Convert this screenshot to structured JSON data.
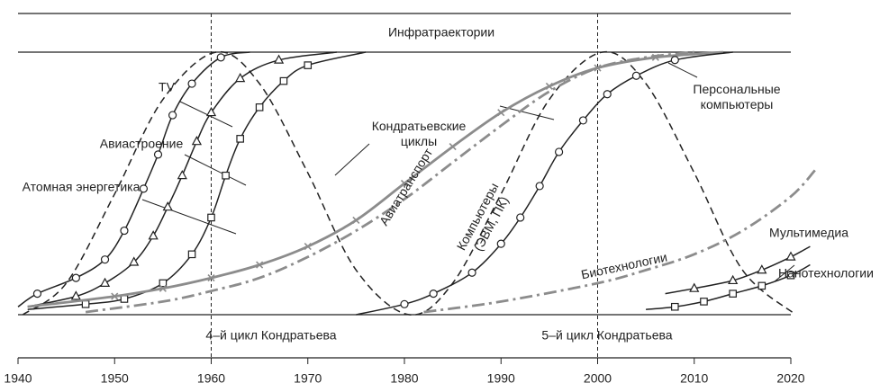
{
  "chart_data": {
    "type": "line",
    "band_label": "Инфратраектории",
    "regions": [
      "4–й цикл Кондратьева",
      "5–й цикл Кондратьева"
    ],
    "vlines": [
      1960,
      2000
    ],
    "xlim": [
      1940,
      2020
    ],
    "ylim": [
      0,
      100
    ],
    "xticks": [
      1940,
      1950,
      1960,
      1970,
      1980,
      1990,
      2000,
      2010,
      2020
    ],
    "series": [
      {
        "name": "TV",
        "color": "#222222",
        "style": "solid",
        "marker": "circle",
        "x": [
          1940,
          1942,
          1946,
          1949,
          1951,
          1953,
          1954.5,
          1956,
          1958,
          1961,
          1964
        ],
        "values": [
          3,
          8,
          14,
          21,
          32,
          48,
          61,
          76,
          88,
          98,
          100
        ]
      },
      {
        "name": "Авиастроение",
        "color": "#222222",
        "style": "solid",
        "marker": "triangle",
        "x": [
          1941,
          1946,
          1949,
          1952,
          1954,
          1955.5,
          1957,
          1958.5,
          1960,
          1963,
          1967,
          1973
        ],
        "values": [
          3,
          7,
          12,
          20,
          30,
          41,
          53,
          66,
          77,
          90,
          97,
          100
        ]
      },
      {
        "name": "Атомная энергетика",
        "color": "#222222",
        "style": "solid",
        "marker": "square",
        "x": [
          1941,
          1947,
          1951,
          1955,
          1958,
          1960,
          1961.5,
          1963,
          1965,
          1967.5,
          1970,
          1976
        ],
        "values": [
          2,
          4,
          6,
          12,
          23,
          37,
          53,
          67,
          79,
          89,
          95,
          100
        ]
      },
      {
        "name": "Кондратьевские циклы",
        "color": "#222222",
        "style": "dashed",
        "marker": null,
        "x": [
          1940.5,
          1945,
          1950,
          1955,
          1960.5,
          1965,
          1970,
          1975,
          1980.5,
          1985,
          1990,
          1995,
          2000.5,
          2005,
          2010,
          2015,
          2020.5
        ],
        "values": [
          0,
          12,
          46,
          82,
          100,
          88,
          54,
          17,
          0,
          12,
          46,
          82,
          100,
          88,
          54,
          17,
          0
        ]
      },
      {
        "name": "Авиатранспорт",
        "color": "#8c8c8c",
        "style": "solid",
        "marker": "x",
        "x": [
          1941,
          1950,
          1955,
          1960,
          1965,
          1970,
          1975,
          1980,
          1985,
          1990,
          1995,
          2000,
          2006,
          2013
        ],
        "values": [
          3,
          7,
          10,
          14,
          19,
          26,
          36,
          50,
          64,
          77,
          87,
          94,
          98,
          100
        ]
      },
      {
        "name": "Компьютеры (ЭВМ, ПК)",
        "color": "#8c8c8c",
        "style": "dashdot",
        "marker": null,
        "x": [
          1947,
          1955,
          1960,
          1965,
          1970,
          1975,
          1980,
          1985,
          1990,
          1995,
          2000,
          2005,
          2010
        ],
        "values": [
          1,
          5,
          9,
          14,
          22,
          32,
          44,
          58,
          72,
          85,
          94,
          98,
          100
        ]
      },
      {
        "name": "Персональные компьютеры",
        "color": "#222222",
        "style": "solid",
        "marker": "circle",
        "x": [
          1975,
          1980,
          1983,
          1987,
          1990,
          1992,
          1994,
          1996,
          1998.5,
          2001,
          2004,
          2008,
          2014
        ],
        "values": [
          0,
          4,
          8,
          16,
          27,
          37,
          49,
          62,
          74,
          84,
          91,
          97,
          100
        ]
      },
      {
        "name": "Биотехнологии",
        "color": "#8c8c8c",
        "style": "dashdot",
        "marker": null,
        "x": [
          1982,
          1990,
          2000,
          2005,
          2010,
          2015,
          2020,
          2022.5
        ],
        "values": [
          1,
          5,
          12,
          17,
          23,
          32,
          45,
          55
        ]
      },
      {
        "name": "Мультимедиа",
        "color": "#222222",
        "style": "solid",
        "marker": "triangle",
        "x": [
          2007,
          2010,
          2014,
          2017,
          2020,
          2022
        ],
        "values": [
          8,
          10,
          13,
          17,
          22,
          26
        ]
      },
      {
        "name": "Нанотехнологии",
        "color": "#222222",
        "style": "solid",
        "marker": "square",
        "x": [
          2005,
          2008,
          2011,
          2014,
          2017,
          2020,
          2022
        ],
        "values": [
          2,
          3,
          5,
          8,
          11,
          15,
          19
        ]
      }
    ]
  }
}
